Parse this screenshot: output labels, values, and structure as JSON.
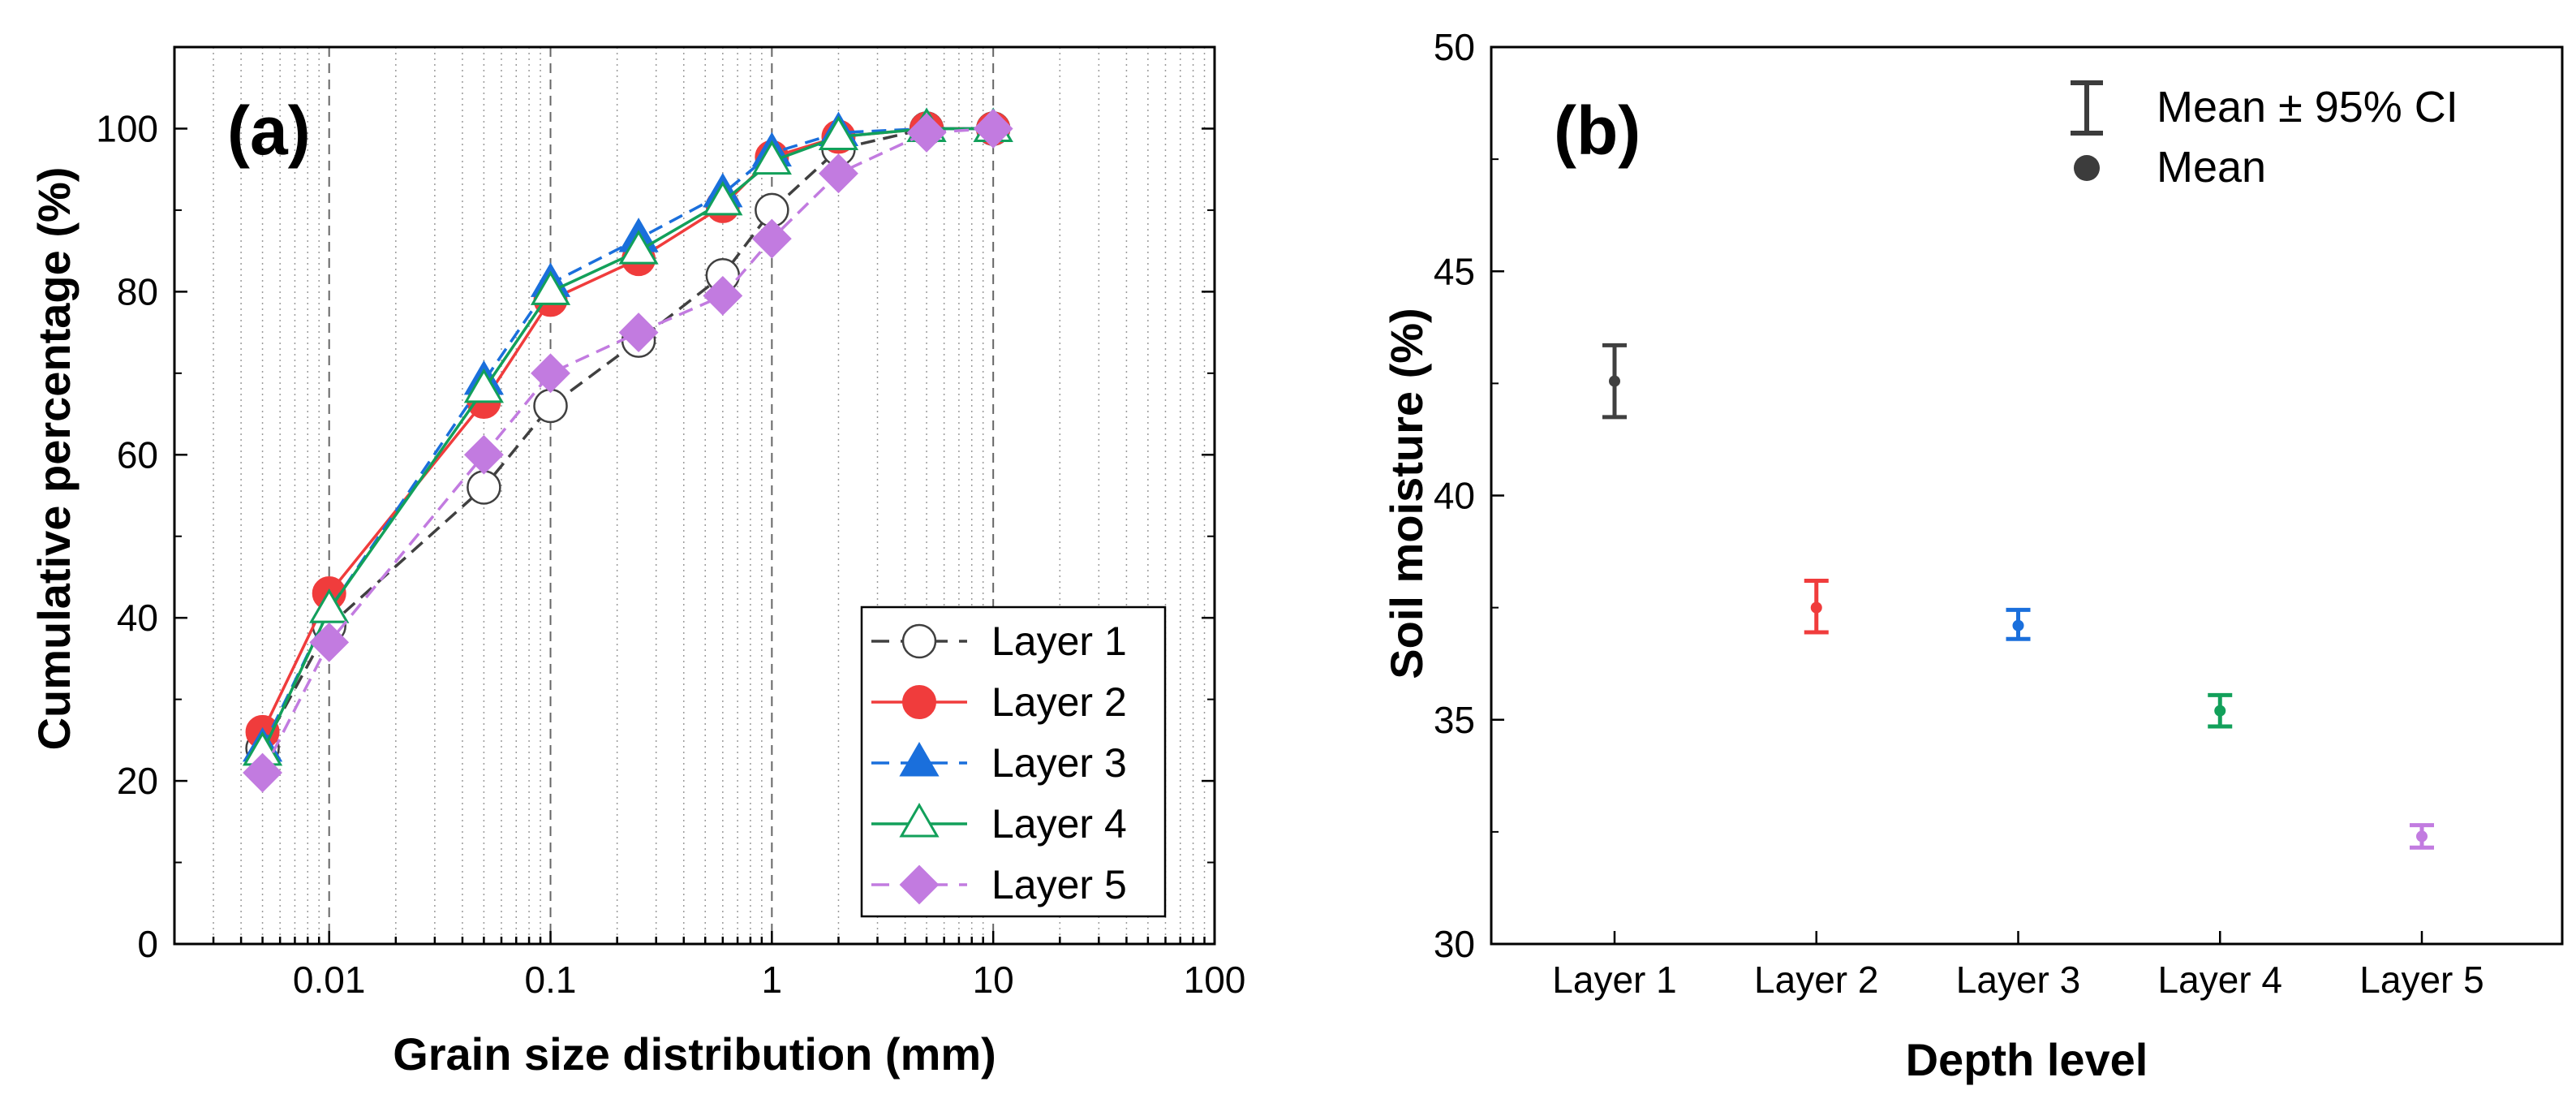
{
  "chart_data": [
    {
      "type": "line",
      "panel": "(a)",
      "xscale": "log",
      "xlim": [
        0.002,
        100
      ],
      "ylim": [
        0,
        110
      ],
      "xlabel": "Grain size distribution (mm)",
      "ylabel": "Cumulative percentage (%)",
      "xticks": [
        0.01,
        0.1,
        1,
        10,
        100
      ],
      "xtick_labels": [
        "0.01",
        "0.1",
        "1",
        "10",
        "100"
      ],
      "yticks": [
        0,
        20,
        40,
        60,
        80,
        100
      ],
      "ytick_labels": [
        "0",
        "20",
        "40",
        "60",
        "80",
        "100"
      ],
      "grid": "vertical dashed major, dotted minor (x only)",
      "legend_position": "bottom-right",
      "series": [
        {
          "name": "Layer 1",
          "color": "#404040",
          "dash": "dashed",
          "marker": "circle-open",
          "x": [
            0.005,
            0.01,
            0.05,
            0.1,
            0.25,
            0.6,
            1,
            2,
            5,
            10
          ],
          "y": [
            24,
            39,
            56,
            66,
            74,
            82,
            90,
            97.5,
            100,
            100
          ]
        },
        {
          "name": "Layer 2",
          "color": "#f03c3c",
          "dash": "solid",
          "marker": "circle-filled",
          "x": [
            0.005,
            0.01,
            0.05,
            0.1,
            0.25,
            0.6,
            1,
            2,
            5,
            10
          ],
          "y": [
            26,
            43,
            66.5,
            79,
            84,
            90.5,
            96.5,
            99,
            100,
            100
          ]
        },
        {
          "name": "Layer 3",
          "color": "#1a6fdc",
          "dash": "dashed",
          "marker": "triangle-filled",
          "x": [
            0.005,
            0.01,
            0.05,
            0.1,
            0.25,
            0.6,
            1,
            2,
            5,
            10
          ],
          "y": [
            24,
            41,
            69,
            81,
            86.5,
            92,
            97,
            99.5,
            100,
            100
          ]
        },
        {
          "name": "Layer 4",
          "color": "#12a05a",
          "dash": "solid",
          "marker": "triangle-open",
          "x": [
            0.005,
            0.01,
            0.05,
            0.1,
            0.25,
            0.6,
            1,
            2,
            5,
            10
          ],
          "y": [
            23.5,
            41,
            68,
            80,
            85,
            91,
            96,
            99,
            100,
            100
          ]
        },
        {
          "name": "Layer 5",
          "color": "#c27be0",
          "dash": "dashed",
          "marker": "diamond-filled",
          "x": [
            0.005,
            0.01,
            0.05,
            0.1,
            0.25,
            0.6,
            1,
            2,
            5,
            10
          ],
          "y": [
            21,
            37,
            60,
            70,
            75,
            79.5,
            86.5,
            94.5,
            99.5,
            100
          ]
        }
      ]
    },
    {
      "type": "scatter",
      "subtype": "errorbar",
      "panel": "(b)",
      "xlabel": "Depth level",
      "ylabel": "Soil moisture (%)",
      "ylim": [
        30,
        50
      ],
      "yticks": [
        30,
        35,
        40,
        45,
        50
      ],
      "ytick_labels": [
        "30",
        "35",
        "40",
        "45",
        "50"
      ],
      "categories": [
        "Layer 1",
        "Layer 2",
        "Layer 3",
        "Layer 4",
        "Layer 5"
      ],
      "legend_position": "top-right",
      "legend": [
        "Mean ± 95% CI",
        "Mean"
      ],
      "series": [
        {
          "name": "Layer 1",
          "color": "#404040",
          "mean": 42.55,
          "lower": 41.75,
          "upper": 43.35
        },
        {
          "name": "Layer 2",
          "color": "#f03c3c",
          "mean": 37.5,
          "lower": 36.95,
          "upper": 38.1
        },
        {
          "name": "Layer 3",
          "color": "#1a6fdc",
          "mean": 37.1,
          "lower": 36.8,
          "upper": 37.45
        },
        {
          "name": "Layer 4",
          "color": "#12a05a",
          "mean": 35.2,
          "lower": 34.85,
          "upper": 35.55
        },
        {
          "name": "Layer 5",
          "color": "#c27be0",
          "mean": 32.4,
          "lower": 32.15,
          "upper": 32.65
        }
      ]
    }
  ]
}
